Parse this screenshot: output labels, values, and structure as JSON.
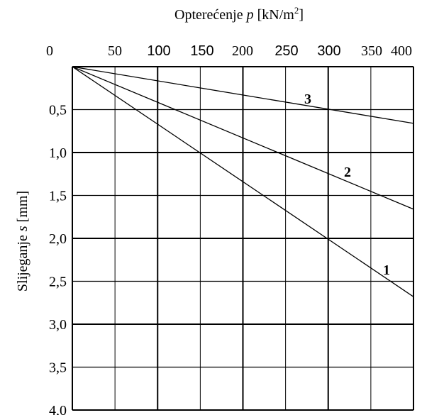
{
  "chart_data": {
    "type": "line",
    "title_parts": [
      "Opterećenje ",
      "p",
      " [kN/m",
      "2",
      "]"
    ],
    "ylabel_parts": [
      "Slijeganje ",
      "s",
      " [mm]"
    ],
    "x_ticks": [
      "0",
      "50",
      "100",
      "150",
      "200",
      "250",
      "300",
      "350",
      "400"
    ],
    "y_ticks": [
      "0,5",
      "1,0",
      "1,5",
      "2,0",
      "2,5",
      "3,0",
      "3,5",
      "4,0"
    ],
    "xlim": [
      0,
      400
    ],
    "ylim": [
      0,
      4.0
    ],
    "y_inverted": true,
    "x_axis_position": "top",
    "grid": true,
    "series": [
      {
        "name": "1",
        "x": [
          0,
          400
        ],
        "y": [
          0,
          2.68
        ]
      },
      {
        "name": "2",
        "x": [
          0,
          400
        ],
        "y": [
          0,
          1.66
        ]
      },
      {
        "name": "3",
        "x": [
          0,
          400
        ],
        "y": [
          0,
          0.66
        ]
      }
    ]
  }
}
